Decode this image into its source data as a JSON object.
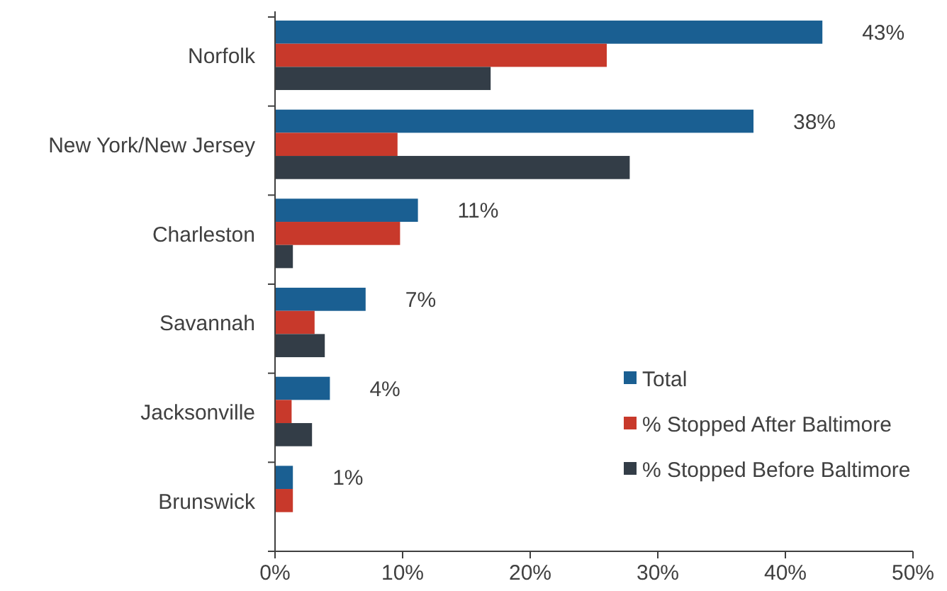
{
  "chart_data": {
    "type": "bar",
    "orientation": "horizontal",
    "categories": [
      "Norfolk",
      "New York/New Jersey",
      "Charleston",
      "Savannah",
      "Jacksonville",
      "Brunswick"
    ],
    "series": [
      {
        "name": "Total",
        "color": "#1a5f92",
        "values": [
          42.9,
          37.5,
          11.2,
          7.1,
          4.3,
          1.4
        ],
        "value_labels": [
          "43%",
          "38%",
          "11%",
          "7%",
          "4%",
          "1%"
        ]
      },
      {
        "name": "% Stopped After Baltimore",
        "color": "#c8392b",
        "values": [
          26.0,
          9.6,
          9.8,
          3.1,
          1.3,
          1.4
        ]
      },
      {
        "name": "% Stopped Before Baltimore",
        "color": "#333d47",
        "values": [
          16.9,
          27.8,
          1.4,
          3.9,
          2.9,
          null
        ]
      }
    ],
    "xlim": [
      0,
      50
    ],
    "xticks": [
      {
        "value": 0,
        "label": "0%"
      },
      {
        "value": 10,
        "label": "10%"
      },
      {
        "value": 20,
        "label": "20%"
      },
      {
        "value": 30,
        "label": "30%"
      },
      {
        "value": 40,
        "label": "40%"
      },
      {
        "value": 50,
        "label": "50%"
      }
    ],
    "legend": "bottom right",
    "grid": false
  }
}
